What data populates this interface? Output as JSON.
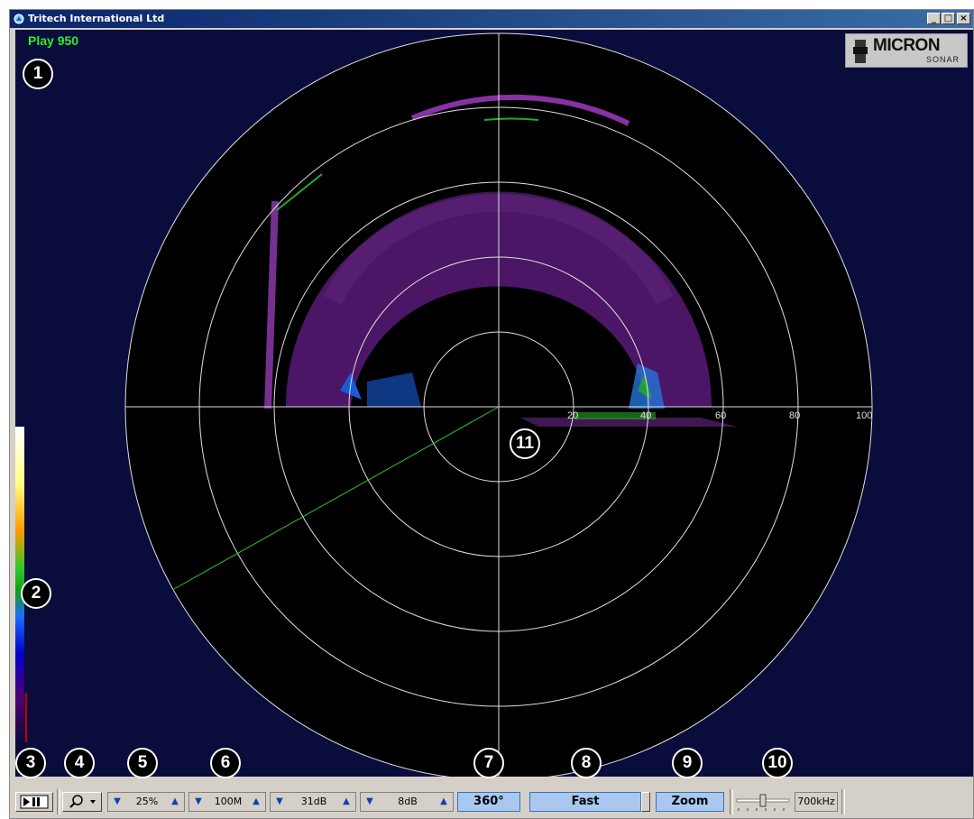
{
  "window": {
    "title": "Tritech International Ltd",
    "minimize_label": "_",
    "maximize_label": "□",
    "close_label": "×"
  },
  "display": {
    "mode_text": "Play 950",
    "logo": {
      "brand": "MICRON",
      "sub": "SONAR"
    },
    "range_labels": [
      "20",
      "40",
      "60",
      "80",
      "100"
    ],
    "callouts": [
      "1",
      "2",
      "3",
      "4",
      "5",
      "6",
      "7",
      "8",
      "9",
      "10",
      "11"
    ]
  },
  "toolbar": {
    "play_pause_icon": "play-pause-icon",
    "tool_icon": "magnifier-tool-icon",
    "contrast_value": "25%",
    "range_value": "100M",
    "gain_value": "31dB",
    "threshold_value": "8dB",
    "sector_label": "360°",
    "speed_label": "Fast",
    "zoom_label": "Zoom",
    "frequency_label": "700kHz"
  },
  "colors": {
    "background": "#0a0c3c",
    "rings": "#e0e0e0",
    "heading_line": "#2ec82e",
    "play_text": "#2cf02c",
    "button_blue": "#a8c8f0"
  }
}
